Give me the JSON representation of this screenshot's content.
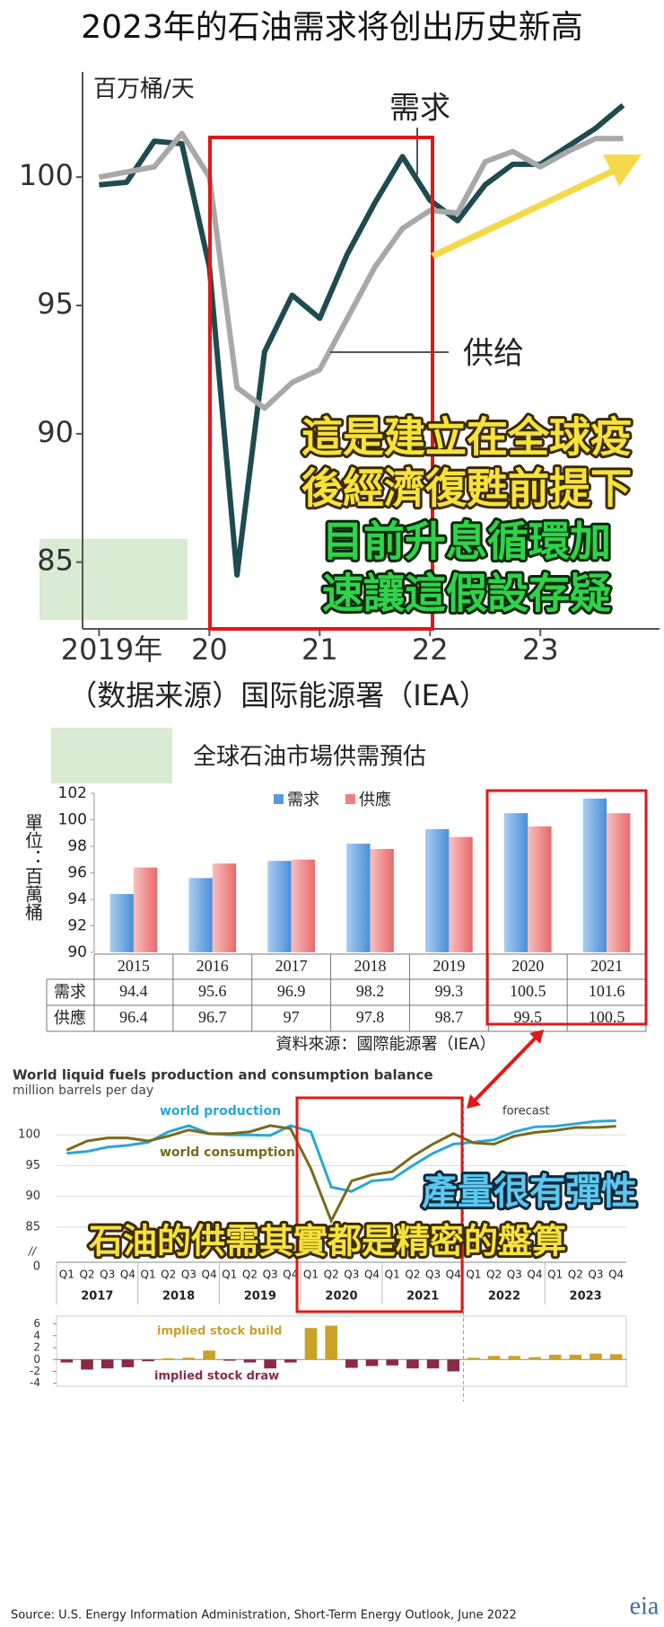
{
  "chart_data": [
    {
      "type": "line",
      "title": "2023年的石油需求将创出历史新高",
      "y_label": "百万桶/天",
      "x": [
        2019,
        2019.25,
        2019.5,
        2019.75,
        2020,
        2020.25,
        2020.5,
        2020.75,
        2021,
        2021.25,
        2021.5,
        2021.75,
        2022,
        2022.25,
        2022.5,
        2022.75,
        2023,
        2023.25,
        2023.5,
        2023.75
      ],
      "xlim": [
        2018.85,
        2024.08
      ],
      "xticks": [
        {
          "value": 2019,
          "label": "2019年"
        },
        {
          "value": 2020,
          "label": "20"
        },
        {
          "value": 2021,
          "label": "21"
        },
        {
          "value": 2022,
          "label": "22"
        },
        {
          "value": 2023,
          "label": "23"
        }
      ],
      "ylim": [
        82.4,
        104.1
      ],
      "yticks": [
        85,
        90,
        95,
        100
      ],
      "series": [
        {
          "name": "需求",
          "color": "#1f4b50",
          "values": [
            99.7,
            99.8,
            101.4,
            101.3,
            96.5,
            84.5,
            93.2,
            95.4,
            94.5,
            97.0,
            99.0,
            100.8,
            99.1,
            98.3,
            99.7,
            100.5,
            100.5,
            101.2,
            101.9,
            102.8
          ]
        },
        {
          "name": "供给",
          "color": "#a8a8a8",
          "values": [
            100.0,
            100.2,
            100.4,
            101.7,
            100.0,
            91.8,
            91.0,
            92.0,
            92.5,
            94.5,
            96.5,
            98.0,
            98.7,
            98.6,
            100.6,
            101.0,
            100.4,
            101.0,
            101.5,
            101.5
          ]
        }
      ],
      "source": "（数据来源）国际能源署（IEA）",
      "annotations": [
        "這是建立在全球疫",
        "後經濟復甦前提下",
        "目前升息循環加",
        "速讓這假設存疑"
      ]
    },
    {
      "type": "bar",
      "title": "全球石油市場供需預估",
      "y_label": "單位：百萬桶",
      "categories": [
        "2015",
        "2016",
        "2017",
        "2018",
        "2019",
        "2020",
        "2021"
      ],
      "series": [
        {
          "name": "需求",
          "color": "#5b9bd5",
          "values": [
            94.4,
            95.6,
            96.9,
            98.2,
            99.3,
            100.5,
            101.6
          ]
        },
        {
          "name": "供應",
          "color": "#f08080",
          "values": [
            96.4,
            96.7,
            97,
            97.8,
            98.7,
            99.5,
            100.5
          ]
        }
      ],
      "ylim": [
        90,
        102
      ],
      "yticks": [
        90,
        92,
        94,
        96,
        98,
        100,
        102
      ],
      "source": "資料來源：國際能源署（IEA）"
    },
    {
      "type": "line",
      "title": "World liquid fuels production and consumption balance",
      "subtitle": "million barrels per day",
      "categories": [
        "Q1",
        "Q2",
        "Q3",
        "Q4",
        "Q1",
        "Q2",
        "Q3",
        "Q4",
        "Q1",
        "Q2",
        "Q3",
        "Q4",
        "Q1",
        "Q2",
        "Q3",
        "Q4",
        "Q1",
        "Q2",
        "Q3",
        "Q4",
        "Q1",
        "Q2",
        "Q3",
        "Q4",
        "Q1",
        "Q2",
        "Q3",
        "Q4"
      ],
      "year_groups": [
        "2017",
        "2018",
        "2019",
        "2020",
        "2021",
        "2022",
        "2023"
      ],
      "series": [
        {
          "name": "world production",
          "color": "#2aa7d6",
          "values": [
            97,
            97.3,
            98,
            98.3,
            98.8,
            100.5,
            101.5,
            100.2,
            100,
            100,
            99.9,
            101.5,
            100.5,
            91.5,
            90.8,
            92.5,
            92.8,
            95,
            97,
            98.5,
            98.8,
            99.2,
            100.5,
            101.3,
            101.4,
            101.8,
            102.2,
            102.3
          ]
        },
        {
          "name": "world consumption",
          "color": "#7a6a1a",
          "values": [
            97.5,
            99,
            99.5,
            99.5,
            99,
            99.8,
            100.8,
            100.2,
            100.2,
            100.5,
            101.5,
            101,
            94.5,
            86,
            92.5,
            93.5,
            94,
            96.5,
            98.5,
            100.2,
            98.7,
            98.5,
            99.8,
            100.4,
            100.7,
            101.2,
            101.2,
            101.4
          ]
        }
      ],
      "ylim": [
        80,
        105
      ],
      "yticks": [
        85,
        90,
        95,
        100
      ],
      "axis_break": {
        "value": 0,
        "mark": "//"
      },
      "forecast_label": "forecast",
      "stock": {
        "build_label": "implied stock build",
        "draw_label": "implied stock draw",
        "build_color": "#c9a227",
        "draw_color": "#8b2a44",
        "values": [
          -0.5,
          -1.7,
          -1.5,
          -1.3,
          -0.3,
          0.2,
          0.3,
          1.5,
          -0.2,
          -0.5,
          -1.5,
          -0.5,
          5.3,
          5.7,
          -1.4,
          -1.1,
          -1.0,
          -1.5,
          -1.5,
          -2.0,
          0.3,
          0.6,
          0.6,
          0.4,
          0.8,
          0.8,
          1.0,
          0.9
        ],
        "ylim": [
          -4.5,
          7.3
        ],
        "yticks": [
          -4,
          -2,
          0,
          2,
          4,
          6
        ]
      },
      "source": "Source: U.S. Energy Information Administration, Short-Term Energy Outlook, June 2022",
      "logo": "eia",
      "annotations": [
        "產量很有彈性",
        "石油的供需其實都是精密的盤算"
      ]
    }
  ]
}
